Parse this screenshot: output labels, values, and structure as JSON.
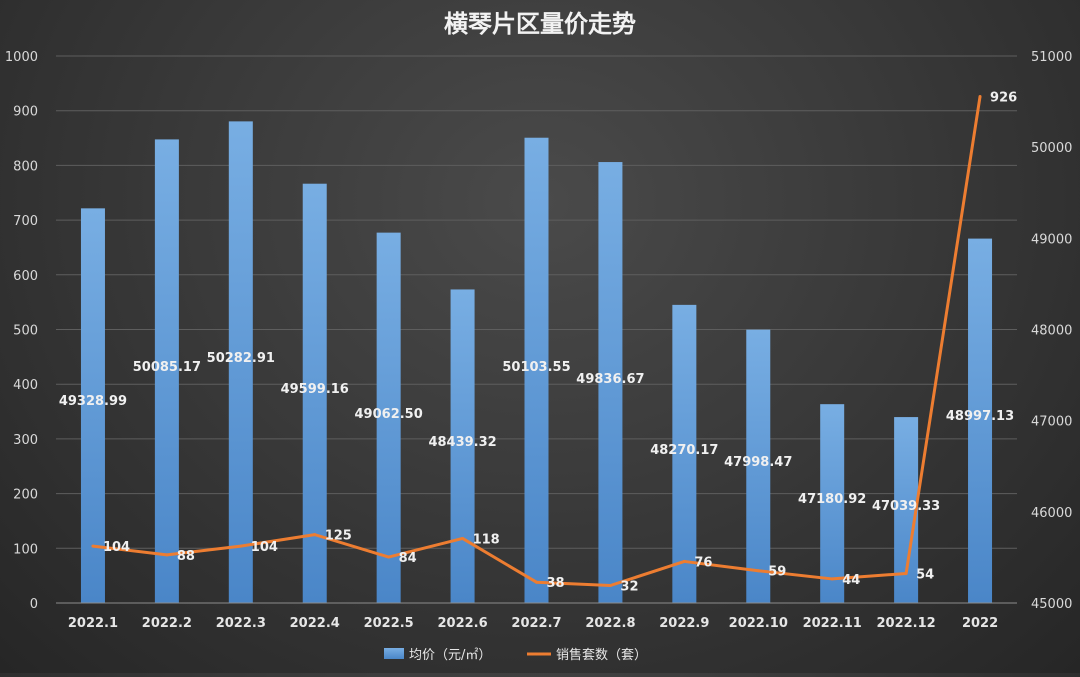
{
  "chart_data": {
    "type": "bar",
    "title": "横琴片区量价走势",
    "categories": [
      "2022.1",
      "2022.2",
      "2022.3",
      "2022.4",
      "2022.5",
      "2022.6",
      "2022.7",
      "2022.8",
      "2022.9",
      "2022.10",
      "2022.11",
      "2022.12",
      "2022"
    ],
    "series": [
      {
        "name": "均价（元/㎡）",
        "chart_type": "bar",
        "axis": "right",
        "color": "#5b9bd5",
        "values": [
          49328.99,
          50085.17,
          50282.91,
          49599.16,
          49062.5,
          48439.32,
          50103.55,
          49836.67,
          48270.17,
          47998.47,
          47180.92,
          47039.33,
          48997.13
        ],
        "labels": [
          "49328.99",
          "50085.17",
          "50282.91",
          "49599.16",
          "49062.50",
          "48439.32",
          "50103.55",
          "49836.67",
          "48270.17",
          "47998.47",
          "47180.92",
          "47039.33",
          "48997.13"
        ]
      },
      {
        "name": "销售套数（套）",
        "chart_type": "line",
        "axis": "left",
        "color": "#ed7d31",
        "values": [
          104,
          88,
          104,
          125,
          84,
          118,
          38,
          32,
          76,
          59,
          44,
          54,
          926
        ],
        "labels": [
          "104",
          "88",
          "104",
          "125",
          "84",
          "118",
          "38",
          "32",
          "76",
          "59",
          "44",
          "54",
          "926"
        ]
      }
    ],
    "y_left": {
      "lim": [
        0,
        1000
      ],
      "ticks": [
        "0",
        "100",
        "200",
        "300",
        "400",
        "500",
        "600",
        "700",
        "800",
        "900",
        "1000"
      ]
    },
    "y_right": {
      "lim": [
        45000,
        51000
      ],
      "ticks": [
        "45000",
        "46000",
        "47000",
        "48000",
        "49000",
        "50000",
        "51000"
      ]
    },
    "grid": true,
    "legend_position": "bottom"
  }
}
